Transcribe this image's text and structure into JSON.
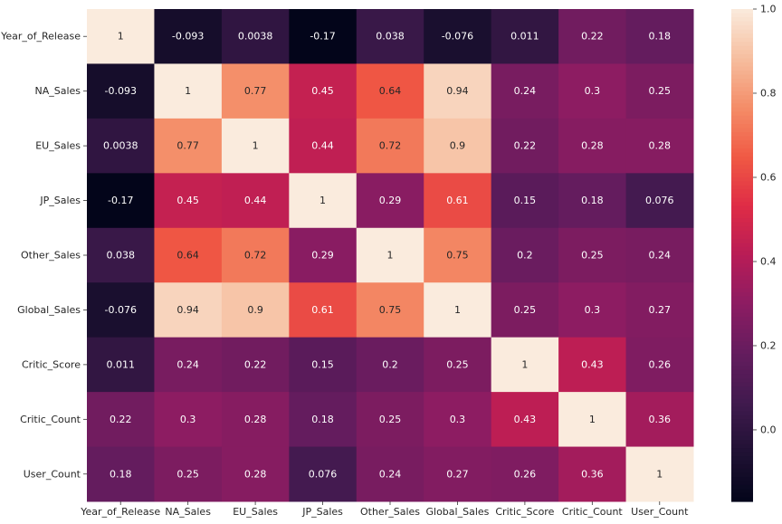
{
  "chart_data": {
    "type": "heatmap",
    "title": "",
    "xlabel": "",
    "ylabel": "",
    "x_categories": [
      "Year_of_Release",
      "NA_Sales",
      "EU_Sales",
      "JP_Sales",
      "Other_Sales",
      "Global_Sales",
      "Critic_Score",
      "Critic_Count",
      "User_Count"
    ],
    "y_categories": [
      "Year_of_Release",
      "NA_Sales",
      "EU_Sales",
      "JP_Sales",
      "Other_Sales",
      "Global_Sales",
      "Critic_Score",
      "Critic_Count",
      "User_Count"
    ],
    "values": [
      [
        1,
        -0.093,
        0.0038,
        -0.17,
        0.038,
        -0.076,
        0.011,
        0.22,
        0.18
      ],
      [
        -0.093,
        1,
        0.77,
        0.45,
        0.64,
        0.94,
        0.24,
        0.3,
        0.25
      ],
      [
        0.0038,
        0.77,
        1,
        0.44,
        0.72,
        0.9,
        0.22,
        0.28,
        0.28
      ],
      [
        -0.17,
        0.45,
        0.44,
        1,
        0.29,
        0.61,
        0.15,
        0.18,
        0.076
      ],
      [
        0.038,
        0.64,
        0.72,
        0.29,
        1,
        0.75,
        0.2,
        0.25,
        0.24
      ],
      [
        -0.076,
        0.94,
        0.9,
        0.61,
        0.75,
        1,
        0.25,
        0.3,
        0.27
      ],
      [
        0.011,
        0.24,
        0.22,
        0.15,
        0.2,
        0.25,
        1,
        0.43,
        0.26
      ],
      [
        0.22,
        0.3,
        0.28,
        0.18,
        0.25,
        0.3,
        0.43,
        1,
        0.36
      ],
      [
        0.18,
        0.25,
        0.28,
        0.076,
        0.24,
        0.27,
        0.26,
        0.36,
        1
      ]
    ],
    "annotations": [
      [
        "1",
        "-0.093",
        "0.0038",
        "-0.17",
        "0.038",
        "-0.076",
        "0.011",
        "0.22",
        "0.18"
      ],
      [
        "-0.093",
        "1",
        "0.77",
        "0.45",
        "0.64",
        "0.94",
        "0.24",
        "0.3",
        "0.25"
      ],
      [
        "0.0038",
        "0.77",
        "1",
        "0.44",
        "0.72",
        "0.9",
        "0.22",
        "0.28",
        "0.28"
      ],
      [
        "-0.17",
        "0.45",
        "0.44",
        "1",
        "0.29",
        "0.61",
        "0.15",
        "0.18",
        "0.076"
      ],
      [
        "0.038",
        "0.64",
        "0.72",
        "0.29",
        "1",
        "0.75",
        "0.2",
        "0.25",
        "0.24"
      ],
      [
        "-0.076",
        "0.94",
        "0.9",
        "0.61",
        "0.75",
        "1",
        "0.25",
        "0.3",
        "0.27"
      ],
      [
        "0.011",
        "0.24",
        "0.22",
        "0.15",
        "0.2",
        "0.25",
        "1",
        "0.43",
        "0.26"
      ],
      [
        "0.22",
        "0.3",
        "0.28",
        "0.18",
        "0.25",
        "0.3",
        "0.43",
        "1",
        "0.36"
      ],
      [
        "0.18",
        "0.25",
        "0.28",
        "0.076",
        "0.24",
        "0.27",
        "0.26",
        "0.36",
        "1"
      ]
    ],
    "colorbar": {
      "vmin": -0.17,
      "vmax": 1.0,
      "ticks": [
        0.0,
        0.2,
        0.4,
        0.6,
        0.8,
        1.0
      ],
      "tick_labels": [
        "0.0",
        "0.2",
        "0.4",
        "0.6",
        "0.8",
        "1.0"
      ],
      "colormap": "rocket"
    },
    "grid": false,
    "legend": "colorbar-right"
  }
}
